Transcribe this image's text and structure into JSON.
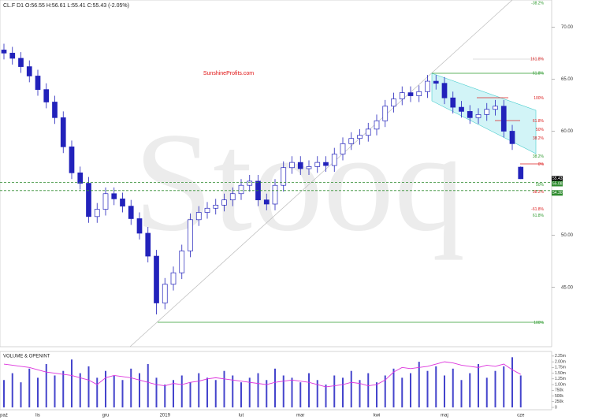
{
  "chart_data": [
    {
      "type": "candlestick",
      "title": "CL.F  D1  O:56.55  H:56.61  L:55.41  C:55.43  (-2.05%)",
      "watermark": "Stooq",
      "source": "SunshineProfits.com",
      "color": "#2222bb",
      "categories": [
        "paź",
        null,
        null,
        null,
        "lis",
        null,
        null,
        null,
        null,
        null,
        null,
        null,
        "gru",
        null,
        null,
        null,
        null,
        null,
        null,
        "2019",
        null,
        null,
        null,
        null,
        null,
        null,
        null,
        null,
        "lut",
        null,
        null,
        null,
        null,
        null,
        null,
        "mar",
        null,
        null,
        null,
        null,
        null,
        null,
        null,
        null,
        "kwi",
        null,
        null,
        null,
        null,
        null,
        null,
        null,
        "maj",
        null,
        null,
        null,
        null,
        null,
        null,
        null,
        null,
        "cze"
      ],
      "open": [
        67.8,
        67.5,
        67.0,
        66.2,
        65.3,
        64.0,
        62.8,
        61.3,
        58.5,
        56.0,
        55.0,
        51.8,
        52.5,
        54.0,
        53.5,
        52.8,
        51.6,
        50.2,
        48.0,
        43.5,
        45.3,
        46.4,
        48.5,
        51.5,
        52.2,
        52.6,
        52.9,
        53.4,
        54.0,
        54.8,
        55.2,
        53.4,
        53.0,
        54.8,
        56.5,
        57.0,
        56.4,
        56.6,
        57.0,
        56.7,
        57.8,
        58.8,
        59.3,
        59.6,
        60.2,
        61.0,
        62.4,
        63.1,
        63.7,
        63.4,
        63.8,
        64.8,
        64.6,
        63.2,
        62.3,
        61.9,
        61.3,
        61.6,
        62.1,
        62.4,
        60.0,
        56.55
      ],
      "high": [
        68.4,
        68.1,
        67.6,
        66.8,
        65.9,
        64.6,
        63.4,
        61.9,
        59.1,
        56.6,
        55.6,
        53.1,
        54.6,
        54.6,
        54.1,
        53.4,
        52.2,
        50.8,
        48.6,
        45.9,
        47.0,
        49.1,
        52.1,
        52.8,
        53.2,
        53.5,
        54.0,
        54.6,
        55.4,
        55.8,
        55.8,
        54.0,
        55.4,
        57.1,
        57.6,
        57.6,
        57.2,
        57.6,
        57.6,
        58.4,
        59.4,
        59.9,
        60.2,
        60.8,
        61.6,
        63.0,
        63.7,
        64.3,
        64.3,
        64.4,
        65.4,
        65.4,
        65.2,
        63.8,
        62.9,
        62.5,
        62.2,
        62.7,
        63.0,
        63.0,
        60.6,
        56.61
      ],
      "low": [
        66.9,
        66.4,
        65.6,
        64.7,
        63.4,
        62.2,
        60.7,
        57.9,
        55.4,
        54.4,
        51.2,
        51.2,
        51.9,
        52.9,
        52.2,
        51.0,
        49.6,
        47.4,
        42.4,
        42.9,
        44.7,
        45.8,
        47.9,
        50.9,
        51.6,
        52.0,
        52.3,
        52.8,
        53.4,
        54.2,
        52.8,
        52.4,
        52.4,
        54.2,
        55.9,
        55.8,
        55.8,
        56.0,
        56.1,
        56.1,
        57.2,
        58.2,
        58.7,
        59.0,
        59.6,
        60.4,
        61.8,
        62.5,
        62.8,
        62.8,
        63.2,
        64.0,
        62.6,
        61.7,
        61.3,
        60.7,
        60.7,
        61.0,
        61.5,
        59.4,
        58.2,
        55.41
      ],
      "close": [
        67.5,
        67.0,
        66.2,
        65.3,
        64.0,
        62.8,
        61.3,
        58.5,
        56.0,
        55.0,
        51.8,
        52.5,
        54.0,
        53.5,
        52.8,
        51.6,
        50.2,
        48.0,
        43.5,
        45.3,
        46.4,
        48.5,
        51.5,
        52.2,
        52.6,
        52.9,
        53.4,
        54.0,
        54.8,
        55.2,
        53.4,
        53.0,
        54.8,
        56.5,
        57.0,
        56.4,
        56.6,
        57.0,
        56.7,
        57.8,
        58.8,
        59.3,
        59.6,
        60.2,
        61.0,
        62.4,
        63.1,
        63.7,
        63.4,
        63.8,
        64.8,
        64.6,
        63.2,
        62.3,
        61.9,
        61.3,
        61.6,
        62.1,
        62.4,
        60.0,
        58.8,
        55.43
      ],
      "ylim": [
        39.3,
        72.6
      ],
      "yticks": [
        {
          "value": 45,
          "label": "45.00"
        },
        {
          "value": 50,
          "label": "50.00"
        },
        {
          "value": 60,
          "label": "60.00"
        },
        {
          "value": 65,
          "label": "65.00"
        },
        {
          "value": 70,
          "label": "70.00"
        }
      ],
      "price_markers": [
        {
          "value": 55.43,
          "label": "55.43",
          "color": "#000000"
        },
        {
          "value": 55.08,
          "label": "55.08",
          "color": "#2e8b2e"
        },
        {
          "value": 54.3,
          "label": "54.30",
          "color": "#2e8b2e"
        }
      ],
      "annotations": [
        {
          "label": "-38.2%",
          "level": 72.27,
          "color": "#2e9a2e"
        },
        {
          "label": "161.8%",
          "level": 66.9,
          "color": "#dd2222"
        },
        {
          "label": "61.8%",
          "level": 65.53,
          "color": "#2e9a2e"
        },
        {
          "label": "100%",
          "level": 63.18,
          "color": "#dd2222"
        },
        {
          "label": "61.8%",
          "level": 60.98,
          "color": "#dd2222"
        },
        {
          "label": "50%",
          "level": 60.15,
          "color": "#dd2222"
        },
        {
          "label": "38.2%",
          "level": 59.32,
          "color": "#dd2222"
        },
        {
          "label": "38.2%",
          "level": 57.58,
          "color": "#2e9a2e"
        },
        {
          "label": "0%",
          "level": 56.82,
          "color": "#dd2222"
        },
        {
          "label": "50%",
          "level": 54.85,
          "color": "#2e9a2e"
        },
        {
          "label": "38.2%",
          "level": 54.17,
          "color": "#dd2222"
        },
        {
          "label": "-61.8%",
          "level": 52.5,
          "color": "#dd2222"
        },
        {
          "label": "61.8%",
          "level": 51.89,
          "color": "#2e9a2e"
        },
        {
          "label": "100%",
          "level": 41.59,
          "color": "#2e9a2e"
        }
      ]
    },
    {
      "type": "bar",
      "title": "VOLUME & OPENINT",
      "color": "#4444cc",
      "line_color": "#dd33dd",
      "values": [
        1200000,
        1500000,
        1100000,
        1700000,
        1300000,
        1900000,
        1400000,
        1600000,
        2100000,
        1500000,
        1800000,
        1300000,
        1600000,
        1400000,
        1200000,
        1700000,
        1500000,
        1900000,
        1300000,
        1000000,
        1200000,
        1400000,
        1100000,
        1500000,
        1300000,
        1200000,
        1600000,
        1400000,
        1100000,
        1300000,
        1500000,
        1200000,
        1700000,
        1400000,
        1300000,
        1100000,
        1500000,
        1200000,
        1000000,
        1400000,
        1300000,
        1600000,
        1200000,
        1500000,
        1100000,
        1400000,
        1700000,
        1300000,
        1500000,
        2000000,
        1600000,
        1800000,
        1400000,
        1700000,
        1200000,
        1500000,
        1900000,
        1300000,
        1600000,
        1800000,
        2200000,
        1400000
      ],
      "line_values": [
        1900000,
        1850000,
        1800000,
        1750000,
        1650000,
        1550000,
        1500000,
        1450000,
        1400000,
        1300000,
        1200000,
        1000000,
        1300000,
        1400000,
        1350000,
        1300000,
        1200000,
        1100000,
        1000000,
        950000,
        1050000,
        1000000,
        1100000,
        1150000,
        1250000,
        1300000,
        1250000,
        1200000,
        1150000,
        1100000,
        1050000,
        1000000,
        1100000,
        1150000,
        1200000,
        1150000,
        1100000,
        1000000,
        900000,
        950000,
        1000000,
        1100000,
        1050000,
        950000,
        1000000,
        1200000,
        1550000,
        1750000,
        1700000,
        1750000,
        1800000,
        1900000,
        2000000,
        1950000,
        1850000,
        1800000,
        1750000,
        1850000,
        1800000,
        1900000,
        1650000,
        1450000
      ],
      "ylim": [
        0,
        2350000
      ],
      "yticks": [
        0,
        {
          "value": 250000,
          "label": "250k"
        },
        {
          "value": 500000,
          "label": "500k"
        },
        {
          "value": 750000,
          "label": "750k"
        },
        {
          "value": 1000000,
          "label": "1.00m"
        },
        {
          "value": 1250000,
          "label": "1.25m"
        },
        {
          "value": 1500000,
          "label": "1.50m"
        },
        {
          "value": 1750000,
          "label": "1.75m"
        },
        {
          "value": 2000000,
          "label": "2.00m"
        },
        {
          "value": 2250000,
          "label": "2.25m"
        }
      ]
    }
  ]
}
